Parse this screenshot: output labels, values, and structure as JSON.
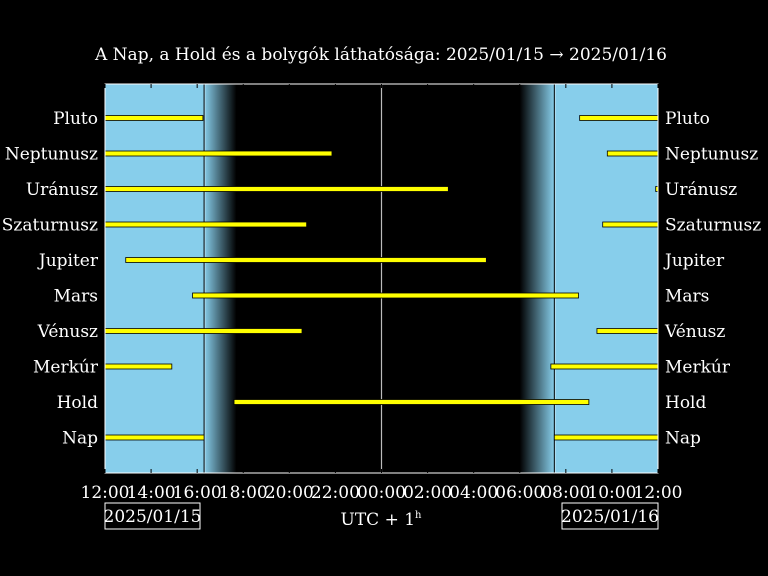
{
  "title": "A Nap, a Hold és a bolygók láthatósága: 2025/01/15 → 2025/01/16",
  "xlabel": "UTC + 1",
  "xlabel_superscript": "h",
  "date_left": "2025/01/15",
  "date_right": "2025/01/16",
  "chart_data": {
    "type": "bar",
    "orientation": "horizontal",
    "x_unit": "hours since 2025/01/15 00:00 UTC+1",
    "xlim": [
      12,
      36
    ],
    "xticks": [
      12,
      14,
      16,
      18,
      20,
      22,
      24,
      26,
      28,
      30,
      32,
      34,
      36
    ],
    "xtick_labels": [
      "12:00",
      "14:00",
      "16:00",
      "18:00",
      "20:00",
      "22:00",
      "00:00",
      "02:00",
      "04:00",
      "06:00",
      "08:00",
      "10:00",
      "12:00"
    ],
    "midnight": 24,
    "sunset": 16.3,
    "sunrise": 31.5,
    "night_start": 17.7,
    "night_end": 30.0,
    "colors": {
      "day": "#87ceeb",
      "night": "#000000",
      "bar": "#ffff00",
      "bar_edge": "#000000",
      "line": "#ffffff"
    },
    "categories": [
      "Pluto",
      "Neptunusz",
      "Uránusz",
      "Szaturnusz",
      "Jupiter",
      "Mars",
      "Vénusz",
      "Merkúr",
      "Hold",
      "Nap"
    ],
    "series": [
      {
        "name": "Pluto",
        "intervals": [
          [
            12,
            16.25
          ],
          [
            32.6,
            36
          ]
        ]
      },
      {
        "name": "Neptunusz",
        "intervals": [
          [
            12,
            21.85
          ],
          [
            33.8,
            36
          ]
        ]
      },
      {
        "name": "Uránusz",
        "intervals": [
          [
            12,
            26.9
          ],
          [
            35.9,
            36
          ]
        ]
      },
      {
        "name": "Szaturnusz",
        "intervals": [
          [
            12,
            20.75
          ],
          [
            33.6,
            36
          ]
        ]
      },
      {
        "name": "Jupiter",
        "intervals": [
          [
            12.9,
            28.55
          ]
        ]
      },
      {
        "name": "Mars",
        "intervals": [
          [
            15.8,
            32.55
          ]
        ]
      },
      {
        "name": "Vénusz",
        "intervals": [
          [
            12,
            20.55
          ],
          [
            33.35,
            36
          ]
        ]
      },
      {
        "name": "Merkúr",
        "intervals": [
          [
            12,
            14.9
          ],
          [
            31.35,
            36
          ]
        ]
      },
      {
        "name": "Hold",
        "intervals": [
          [
            17.6,
            33.0
          ]
        ]
      },
      {
        "name": "Nap",
        "intervals": [
          [
            12,
            16.3
          ],
          [
            31.5,
            36
          ]
        ]
      }
    ]
  }
}
